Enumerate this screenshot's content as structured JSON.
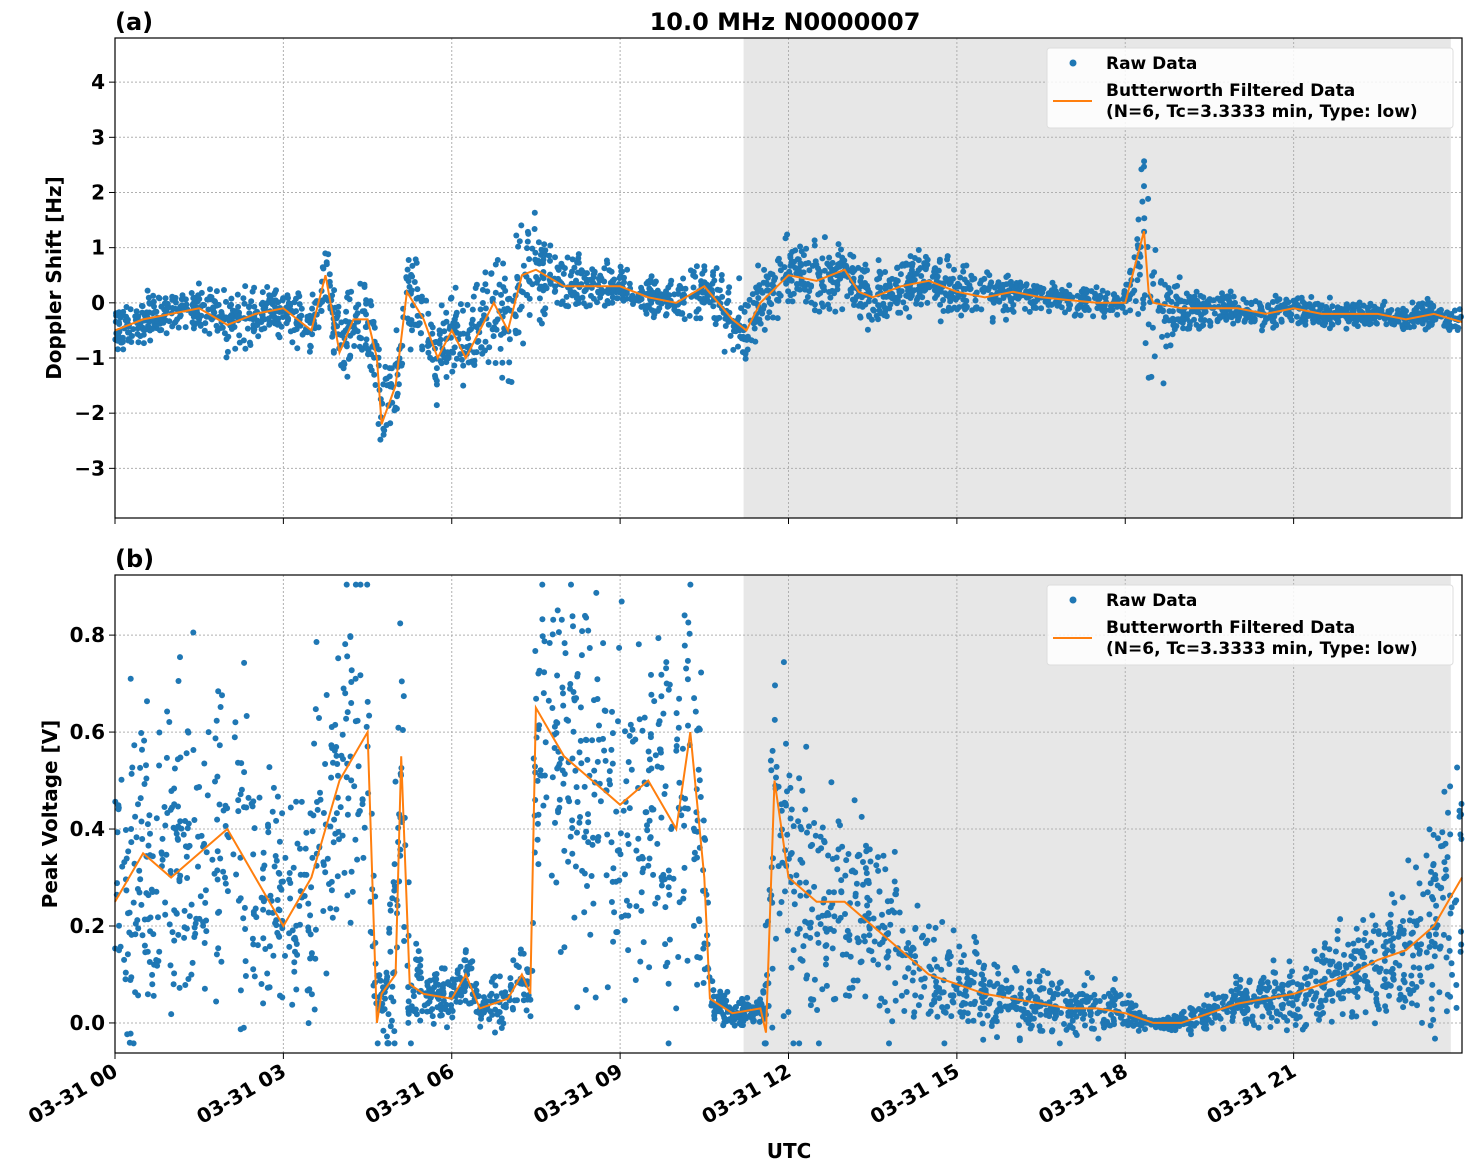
{
  "chart_data": [
    {
      "type": "scatter+line",
      "panel_label": "(a)",
      "title": "10.0 MHz N0000007",
      "xlabel": "",
      "ylabel": "Doppler Shift [Hz]",
      "date": "03-31",
      "xlim": [
        "03-31 00:00",
        "03-31 24:00"
      ],
      "ylim": [
        -3.9,
        4.8
      ],
      "yticks": [
        -3,
        -2,
        -1,
        0,
        1,
        2,
        3,
        4
      ],
      "ytick_labels": [
        "−3",
        "−2",
        "−1",
        "0",
        "1",
        "2",
        "3",
        "4"
      ],
      "shaded_region": [
        "11:12",
        "23:48"
      ],
      "grid": true,
      "legend": {
        "placement": "top-right",
        "entries": [
          "Raw Data",
          "Butterworth Filtered Data\n(N=6, Tc=3.3333 min, Type: low)"
        ]
      },
      "series": [
        {
          "name": "Butterworth Filtered Data (N=6, Tc=3.3333 min, Type: low)",
          "kind": "line",
          "color": "#ff7f0e",
          "x": [
            "00:00",
            "00:30",
            "01:00",
            "01:30",
            "02:00",
            "02:30",
            "03:00",
            "03:15",
            "03:30",
            "03:45",
            "04:00",
            "04:15",
            "04:30",
            "04:40",
            "04:45",
            "05:00",
            "05:12",
            "05:30",
            "05:45",
            "06:00",
            "06:15",
            "06:30",
            "06:45",
            "07:00",
            "07:15",
            "07:30",
            "08:00",
            "08:30",
            "09:00",
            "09:30",
            "10:00",
            "10:30",
            "11:00",
            "11:15",
            "11:30",
            "12:00",
            "12:30",
            "13:00",
            "13:15",
            "13:30",
            "14:00",
            "14:30",
            "15:00",
            "15:30",
            "16:00",
            "16:30",
            "17:00",
            "17:30",
            "18:00",
            "18:20",
            "18:25",
            "18:30",
            "19:00",
            "19:30",
            "20:00",
            "20:30",
            "21:00",
            "21:30",
            "22:00",
            "22:30",
            "23:00",
            "23:30",
            "24:00"
          ],
          "y": [
            -0.5,
            -0.3,
            -0.2,
            -0.1,
            -0.4,
            -0.2,
            -0.1,
            -0.3,
            -0.5,
            0.5,
            -0.9,
            -0.3,
            -0.3,
            -1.0,
            -2.2,
            -1.5,
            0.2,
            -0.3,
            -1.0,
            -0.5,
            -1.0,
            -0.5,
            0.0,
            -0.5,
            0.5,
            0.6,
            0.3,
            0.3,
            0.3,
            0.1,
            0.0,
            0.3,
            -0.3,
            -0.5,
            0.0,
            0.5,
            0.4,
            0.6,
            0.2,
            0.1,
            0.3,
            0.4,
            0.2,
            0.1,
            0.2,
            0.1,
            0.05,
            0.0,
            0.0,
            1.3,
            0.2,
            0.0,
            -0.1,
            -0.1,
            -0.1,
            -0.2,
            -0.1,
            -0.2,
            -0.2,
            -0.2,
            -0.3,
            -0.2,
            -0.35
          ]
        },
        {
          "name": "Raw Data",
          "kind": "scatter",
          "color": "#1f77b4",
          "x": [
            "00:00",
            "01:00",
            "02:00",
            "03:00",
            "04:00",
            "04:45",
            "05:30",
            "06:30",
            "07:15",
            "08:00",
            "09:00",
            "10:00",
            "11:00",
            "12:00",
            "13:00",
            "14:00",
            "15:00",
            "16:00",
            "17:00",
            "18:00",
            "18:25",
            "19:00",
            "20:00",
            "21:00",
            "22:00",
            "23:00",
            "24:00"
          ],
          "spread": [
            0.35,
            0.35,
            0.45,
            0.35,
            0.55,
            0.8,
            0.6,
            0.7,
            1.0,
            0.4,
            0.3,
            0.3,
            0.55,
            0.5,
            0.45,
            0.45,
            0.4,
            0.3,
            0.2,
            0.2,
            1.5,
            0.35,
            0.2,
            0.2,
            0.2,
            0.2,
            0.2
          ]
        }
      ]
    },
    {
      "type": "scatter+line",
      "panel_label": "(b)",
      "xlabel": "UTC",
      "ylabel": "Peak Voltage [V]",
      "date": "03-31",
      "xlim": [
        "03-31 00:00",
        "03-31 24:00"
      ],
      "ylim": [
        -0.062,
        0.924
      ],
      "yticks": [
        0.0,
        0.2,
        0.4,
        0.6,
        0.8
      ],
      "ytick_labels": [
        "0.0",
        "0.2",
        "0.4",
        "0.6",
        "0.8"
      ],
      "xtick_labels": [
        "03-31 00",
        "03-31 03",
        "03-31 06",
        "03-31 09",
        "03-31 12",
        "03-31 15",
        "03-31 18",
        "03-31 21"
      ],
      "shaded_region": [
        "11:12",
        "23:48"
      ],
      "grid": true,
      "legend": {
        "placement": "top-right",
        "entries": [
          "Raw Data",
          "Butterworth Filtered Data\n(N=6, Tc=3.3333 min, Type: low)"
        ]
      },
      "series": [
        {
          "name": "Butterworth Filtered Data (N=6, Tc=3.3333 min, Type: low)",
          "kind": "line",
          "color": "#ff7f0e",
          "x": [
            "00:00",
            "00:30",
            "01:00",
            "01:30",
            "02:00",
            "02:30",
            "03:00",
            "03:30",
            "04:00",
            "04:30",
            "04:40",
            "04:45",
            "05:00",
            "05:06",
            "05:15",
            "05:30",
            "06:00",
            "06:15",
            "06:30",
            "07:00",
            "07:15",
            "07:24",
            "07:30",
            "08:00",
            "08:30",
            "09:00",
            "09:30",
            "10:00",
            "10:15",
            "10:30",
            "10:36",
            "11:00",
            "11:30",
            "11:36",
            "11:45",
            "12:00",
            "12:30",
            "13:00",
            "13:30",
            "14:00",
            "14:30",
            "15:00",
            "15:30",
            "16:00",
            "16:30",
            "17:00",
            "17:30",
            "18:00",
            "18:30",
            "19:00",
            "19:30",
            "20:00",
            "20:30",
            "21:00",
            "21:30",
            "22:00",
            "22:30",
            "23:00",
            "23:30",
            "24:00"
          ],
          "y": [
            0.25,
            0.35,
            0.3,
            0.35,
            0.4,
            0.3,
            0.2,
            0.3,
            0.5,
            0.6,
            0.0,
            0.06,
            0.1,
            0.55,
            0.08,
            0.06,
            0.05,
            0.1,
            0.03,
            0.05,
            0.1,
            0.06,
            0.65,
            0.55,
            0.5,
            0.45,
            0.5,
            0.4,
            0.6,
            0.3,
            0.05,
            0.02,
            0.03,
            -0.02,
            0.5,
            0.3,
            0.25,
            0.25,
            0.2,
            0.15,
            0.1,
            0.08,
            0.06,
            0.05,
            0.04,
            0.03,
            0.03,
            0.02,
            0.0,
            0.0,
            0.02,
            0.04,
            0.05,
            0.06,
            0.08,
            0.1,
            0.13,
            0.15,
            0.2,
            0.3
          ]
        },
        {
          "name": "Raw Data",
          "kind": "scatter",
          "color": "#1f77b4",
          "x": [
            "00:00",
            "01:00",
            "02:00",
            "03:00",
            "04:00",
            "04:30",
            "04:45",
            "05:00",
            "05:30",
            "06:30",
            "07:24",
            "07:30",
            "08:30",
            "09:30",
            "10:30",
            "10:36",
            "11:30",
            "11:45",
            "12:30",
            "13:30",
            "14:30",
            "16:00",
            "18:00",
            "18:30",
            "19:00",
            "20:30",
            "22:00",
            "23:00",
            "24:00"
          ],
          "spread": [
            0.25,
            0.28,
            0.3,
            0.2,
            0.3,
            0.3,
            0.05,
            0.3,
            0.05,
            0.04,
            0.06,
            0.28,
            0.3,
            0.3,
            0.3,
            0.03,
            0.02,
            0.3,
            0.2,
            0.15,
            0.1,
            0.06,
            0.04,
            0.005,
            0.02,
            0.05,
            0.08,
            0.12,
            0.25
          ]
        }
      ]
    }
  ]
}
